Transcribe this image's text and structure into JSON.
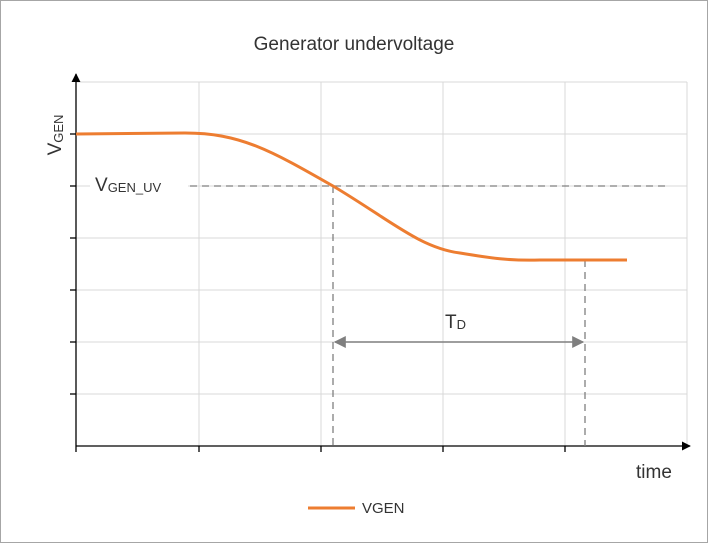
{
  "title": "Generator undervoltage",
  "y_axis": {
    "label": "V",
    "label_sub": "GEN"
  },
  "threshold": {
    "label": "V",
    "label_sub": "GEN_UV"
  },
  "delay": {
    "label": "T",
    "label_sub": "D"
  },
  "x_axis": {
    "label": "time"
  },
  "legend": {
    "label": "VGEN"
  }
}
